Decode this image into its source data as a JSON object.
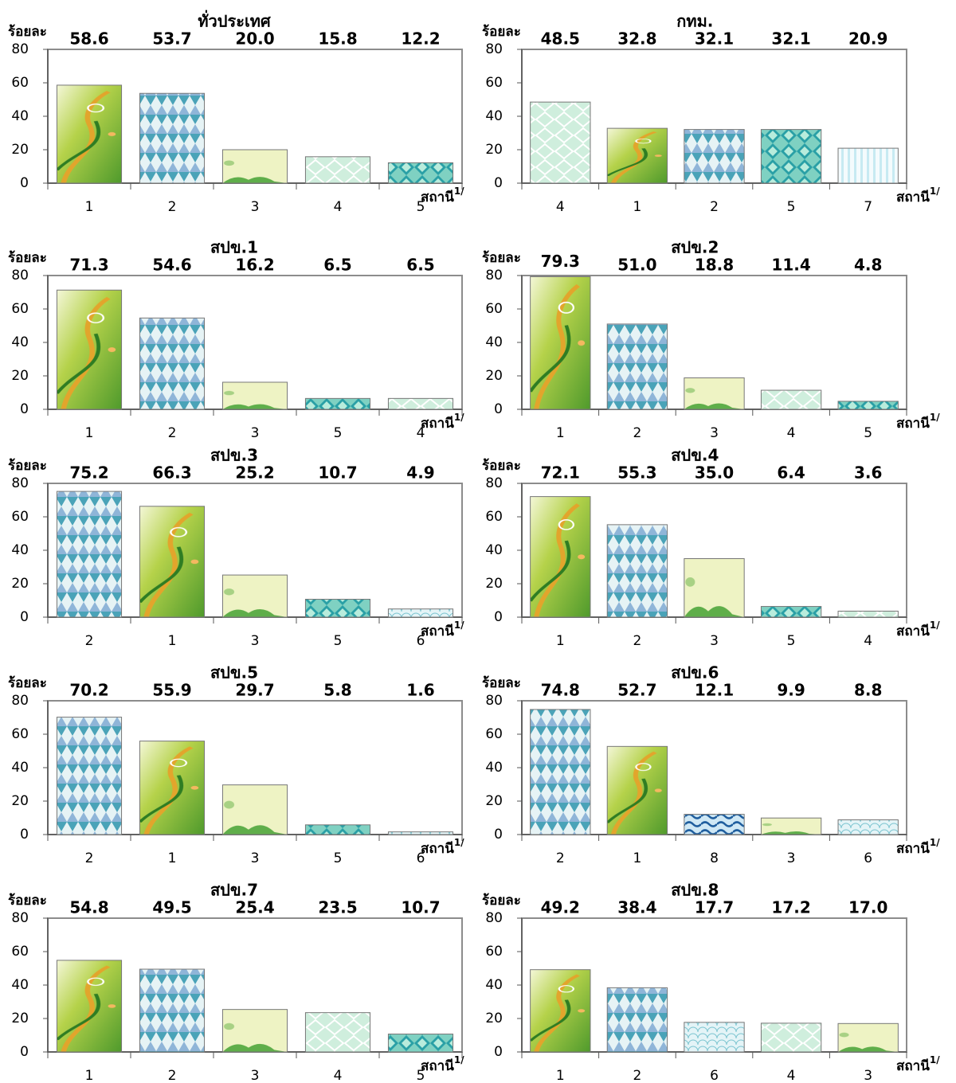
{
  "chart_data": [
    {
      "type": "bar",
      "title": "ทั่วประเทศ",
      "ylabel": "ร้อยละ",
      "xlabel": "สถานี",
      "xlabel_superscript": "1/",
      "categories": [
        "1",
        "2",
        "3",
        "4",
        "5"
      ],
      "values": [
        58.6,
        53.7,
        20.0,
        15.8,
        12.2
      ],
      "value_labels": [
        "58.6",
        "53.7",
        "20.0",
        "15.8",
        "12.2"
      ],
      "ylim": [
        0,
        80
      ],
      "yticks": [
        0,
        20,
        40,
        60,
        80
      ]
    },
    {
      "type": "bar",
      "title": "กทม.",
      "ylabel": "ร้อยละ",
      "xlabel": "สถานี",
      "xlabel_superscript": "1/",
      "categories": [
        "4",
        "1",
        "2",
        "5",
        "7"
      ],
      "values": [
        48.5,
        32.8,
        32.1,
        32.1,
        20.9
      ],
      "value_labels": [
        "48.5",
        "32.8",
        "32.1",
        "32.1",
        "20.9"
      ],
      "ylim": [
        0,
        80
      ],
      "yticks": [
        0,
        20,
        40,
        60,
        80
      ]
    },
    {
      "type": "bar",
      "title": "สปข.1",
      "ylabel": "ร้อยละ",
      "xlabel": "สถานี",
      "xlabel_superscript": "1/",
      "categories": [
        "1",
        "2",
        "3",
        "5",
        "4"
      ],
      "values": [
        71.3,
        54.6,
        16.2,
        6.5,
        6.5
      ],
      "value_labels": [
        "71.3",
        "54.6",
        "16.2",
        "6.5",
        "6.5"
      ],
      "ylim": [
        0,
        80
      ],
      "yticks": [
        0,
        20,
        40,
        60,
        80
      ]
    },
    {
      "type": "bar",
      "title": "สปข.2",
      "ylabel": "ร้อยละ",
      "xlabel": "สถานี",
      "xlabel_superscript": "1/",
      "categories": [
        "1",
        "2",
        "3",
        "4",
        "5"
      ],
      "values": [
        79.3,
        51.0,
        18.8,
        11.4,
        4.8
      ],
      "value_labels": [
        "79.3",
        "51.0",
        "18.8",
        "11.4",
        "4.8"
      ],
      "ylim": [
        0,
        80
      ],
      "yticks": [
        0,
        20,
        40,
        60,
        80
      ]
    },
    {
      "type": "bar",
      "title": "สปข.3",
      "ylabel": "ร้อยละ",
      "xlabel": "สถานี",
      "xlabel_superscript": "1/",
      "categories": [
        "2",
        "1",
        "3",
        "5",
        "6"
      ],
      "values": [
        75.2,
        66.3,
        25.2,
        10.7,
        4.9
      ],
      "value_labels": [
        "75.2",
        "66.3",
        "25.2",
        "10.7",
        "4.9"
      ],
      "ylim": [
        0,
        80
      ],
      "yticks": [
        0,
        20,
        40,
        60,
        80
      ]
    },
    {
      "type": "bar",
      "title": "สปข.4",
      "ylabel": "ร้อยละ",
      "xlabel": "สถานี",
      "xlabel_superscript": "1/",
      "categories": [
        "1",
        "2",
        "3",
        "5",
        "4"
      ],
      "values": [
        72.1,
        55.3,
        35.0,
        6.4,
        3.6
      ],
      "value_labels": [
        "72.1",
        "55.3",
        "35.0",
        "6.4",
        "3.6"
      ],
      "ylim": [
        0,
        80
      ],
      "yticks": [
        0,
        20,
        40,
        60,
        80
      ]
    },
    {
      "type": "bar",
      "title": "สปข.5",
      "ylabel": "ร้อยละ",
      "xlabel": "สถานี",
      "xlabel_superscript": "1/",
      "categories": [
        "2",
        "1",
        "3",
        "5",
        "6"
      ],
      "values": [
        70.2,
        55.9,
        29.7,
        5.8,
        1.6
      ],
      "value_labels": [
        "70.2",
        "55.9",
        "29.7",
        "5.8",
        "1.6"
      ],
      "ylim": [
        0,
        80
      ],
      "yticks": [
        0,
        20,
        40,
        60,
        80
      ]
    },
    {
      "type": "bar",
      "title": "สปข.6",
      "ylabel": "ร้อยละ",
      "xlabel": "สถานี",
      "xlabel_superscript": "1/",
      "categories": [
        "2",
        "1",
        "8",
        "3",
        "6"
      ],
      "values": [
        74.8,
        52.7,
        12.1,
        9.9,
        8.8
      ],
      "value_labels": [
        "74.8",
        "52.7",
        "12.1",
        "9.9",
        "8.8"
      ],
      "ylim": [
        0,
        80
      ],
      "yticks": [
        0,
        20,
        40,
        60,
        80
      ]
    },
    {
      "type": "bar",
      "title": "สปข.7",
      "ylabel": "ร้อยละ",
      "xlabel": "สถานี",
      "xlabel_superscript": "1/",
      "categories": [
        "1",
        "2",
        "3",
        "4",
        "5"
      ],
      "values": [
        54.8,
        49.5,
        25.4,
        23.5,
        10.7
      ],
      "value_labels": [
        "54.8",
        "49.5",
        "25.4",
        "23.5",
        "10.7"
      ],
      "ylim": [
        0,
        80
      ],
      "yticks": [
        0,
        20,
        40,
        60,
        80
      ]
    },
    {
      "type": "bar",
      "title": "สปข.8",
      "ylabel": "ร้อยละ",
      "xlabel": "สถานี",
      "xlabel_superscript": "1/",
      "categories": [
        "1",
        "2",
        "6",
        "4",
        "3"
      ],
      "values": [
        49.2,
        38.4,
        17.7,
        17.2,
        17.0
      ],
      "value_labels": [
        "49.2",
        "38.4",
        "17.7",
        "17.2",
        "17.0"
      ],
      "ylim": [
        0,
        80
      ],
      "yticks": [
        0,
        20,
        40,
        60,
        80
      ]
    }
  ]
}
